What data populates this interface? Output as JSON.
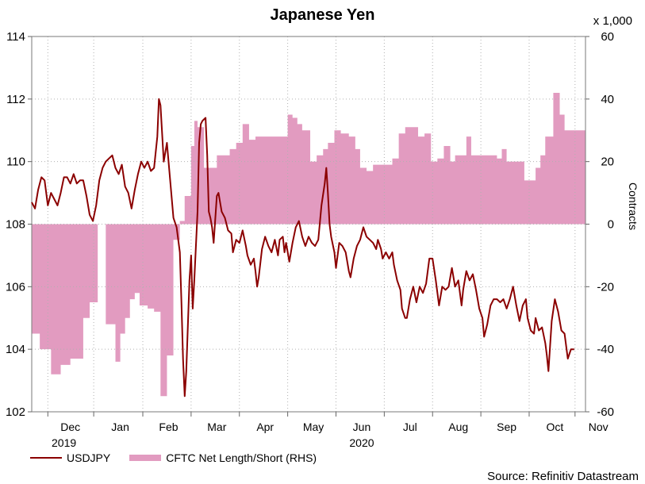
{
  "title": "Japanese Yen",
  "colors": {
    "usdjpy": "#8b0000",
    "cftc": "#e29bc0",
    "grid": "#b0b0b0"
  },
  "chart_data": {
    "type": "line+area",
    "title": "Japanese Yen",
    "scale_note": "x 1,000",
    "right_axis_label": "Contracts",
    "left_axis": {
      "ylim": [
        102,
        114
      ],
      "ticks": [
        "102",
        "104",
        "106",
        "108",
        "110",
        "112",
        "114"
      ]
    },
    "right_axis": {
      "ylim": [
        -60,
        60
      ],
      "ticks": [
        "-60",
        "-40",
        "-20",
        "0",
        "20",
        "40",
        "60"
      ]
    },
    "x_domain": [
      0,
      344
    ],
    "month_labels": [
      {
        "label": "Dec",
        "x": 24
      },
      {
        "label": "Jan",
        "x": 55
      },
      {
        "label": "Feb",
        "x": 85
      },
      {
        "label": "Mar",
        "x": 115
      },
      {
        "label": "Apr",
        "x": 145
      },
      {
        "label": "May",
        "x": 175
      },
      {
        "label": "Jun",
        "x": 205
      },
      {
        "label": "Jul",
        "x": 235
      },
      {
        "label": "Aug",
        "x": 265
      },
      {
        "label": "Sep",
        "x": 295
      },
      {
        "label": "Oct",
        "x": 325
      },
      {
        "label": "Nov",
        "x": 352
      }
    ],
    "year_labels": [
      {
        "label": "2019",
        "x": 20
      },
      {
        "label": "2020",
        "x": 205
      }
    ],
    "series": [
      {
        "name": "USDJPY",
        "type": "line",
        "axis": "left",
        "points": [
          [
            0,
            108.7
          ],
          [
            2,
            108.5
          ],
          [
            4,
            109.1
          ],
          [
            6,
            109.5
          ],
          [
            8,
            109.4
          ],
          [
            10,
            108.6
          ],
          [
            12,
            109.0
          ],
          [
            14,
            108.8
          ],
          [
            16,
            108.6
          ],
          [
            18,
            109.0
          ],
          [
            20,
            109.5
          ],
          [
            22,
            109.5
          ],
          [
            24,
            109.3
          ],
          [
            26,
            109.6
          ],
          [
            28,
            109.3
          ],
          [
            30,
            109.4
          ],
          [
            32,
            109.4
          ],
          [
            34,
            108.9
          ],
          [
            36,
            108.3
          ],
          [
            38,
            108.1
          ],
          [
            40,
            108.6
          ],
          [
            42,
            109.4
          ],
          [
            44,
            109.8
          ],
          [
            46,
            110.0
          ],
          [
            48,
            110.1
          ],
          [
            50,
            110.2
          ],
          [
            52,
            109.8
          ],
          [
            54,
            109.6
          ],
          [
            56,
            109.9
          ],
          [
            58,
            109.2
          ],
          [
            60,
            109.0
          ],
          [
            62,
            108.5
          ],
          [
            64,
            109.1
          ],
          [
            66,
            109.6
          ],
          [
            68,
            110.0
          ],
          [
            70,
            109.8
          ],
          [
            72,
            110.0
          ],
          [
            74,
            109.7
          ],
          [
            76,
            109.8
          ],
          [
            78,
            110.8
          ],
          [
            79,
            112.0
          ],
          [
            80,
            111.8
          ],
          [
            82,
            110.0
          ],
          [
            84,
            110.6
          ],
          [
            86,
            109.4
          ],
          [
            88,
            108.2
          ],
          [
            90,
            107.9
          ],
          [
            92,
            107.1
          ],
          [
            93,
            105.5
          ],
          [
            94,
            103.7
          ],
          [
            95,
            102.5
          ],
          [
            96,
            103.3
          ],
          [
            98,
            106.2
          ],
          [
            99,
            107.0
          ],
          [
            100,
            105.3
          ],
          [
            101,
            106.2
          ],
          [
            103,
            108.4
          ],
          [
            104,
            110.6
          ],
          [
            105,
            111.2
          ],
          [
            106,
            111.3
          ],
          [
            108,
            111.4
          ],
          [
            109,
            110.2
          ],
          [
            110,
            108.4
          ],
          [
            111,
            108.2
          ],
          [
            112,
            107.9
          ],
          [
            113,
            107.4
          ],
          [
            115,
            108.9
          ],
          [
            116,
            109.0
          ],
          [
            118,
            108.4
          ],
          [
            120,
            108.2
          ],
          [
            122,
            107.8
          ],
          [
            124,
            107.7
          ],
          [
            125,
            107.1
          ],
          [
            127,
            107.5
          ],
          [
            129,
            107.4
          ],
          [
            131,
            107.8
          ],
          [
            133,
            107.3
          ],
          [
            134,
            107.0
          ],
          [
            136,
            106.7
          ],
          [
            138,
            106.9
          ],
          [
            139,
            106.5
          ],
          [
            140,
            106.0
          ],
          [
            141,
            106.3
          ],
          [
            143,
            107.2
          ],
          [
            145,
            107.6
          ],
          [
            147,
            107.3
          ],
          [
            149,
            107.1
          ],
          [
            151,
            107.5
          ],
          [
            153,
            107.0
          ],
          [
            154,
            107.5
          ],
          [
            156,
            107.6
          ],
          [
            157,
            107.1
          ],
          [
            158,
            107.4
          ],
          [
            160,
            106.8
          ],
          [
            162,
            107.4
          ],
          [
            164,
            107.9
          ],
          [
            166,
            108.1
          ],
          [
            168,
            107.6
          ],
          [
            170,
            107.3
          ],
          [
            172,
            107.6
          ],
          [
            174,
            107.4
          ],
          [
            176,
            107.3
          ],
          [
            178,
            107.5
          ],
          [
            180,
            108.6
          ],
          [
            182,
            109.3
          ],
          [
            183,
            109.8
          ],
          [
            184,
            109.0
          ],
          [
            185,
            108.0
          ],
          [
            186,
            107.6
          ],
          [
            188,
            107.1
          ],
          [
            189,
            106.6
          ],
          [
            191,
            107.4
          ],
          [
            193,
            107.3
          ],
          [
            195,
            107.1
          ],
          [
            197,
            106.5
          ],
          [
            198,
            106.3
          ],
          [
            200,
            106.9
          ],
          [
            202,
            107.3
          ],
          [
            204,
            107.5
          ],
          [
            206,
            107.9
          ],
          [
            208,
            107.6
          ],
          [
            210,
            107.5
          ],
          [
            212,
            107.4
          ],
          [
            214,
            107.2
          ],
          [
            215,
            107.5
          ],
          [
            217,
            107.2
          ],
          [
            218,
            106.9
          ],
          [
            220,
            107.1
          ],
          [
            222,
            106.9
          ],
          [
            224,
            107.1
          ],
          [
            225,
            106.7
          ],
          [
            227,
            106.2
          ],
          [
            229,
            105.9
          ],
          [
            230,
            105.3
          ],
          [
            232,
            105.0
          ],
          [
            233,
            105.0
          ],
          [
            235,
            105.6
          ],
          [
            237,
            106.0
          ],
          [
            239,
            105.5
          ],
          [
            241,
            106.0
          ],
          [
            243,
            105.8
          ],
          [
            245,
            106.1
          ],
          [
            247,
            106.9
          ],
          [
            249,
            106.9
          ],
          [
            251,
            106.2
          ],
          [
            253,
            105.4
          ],
          [
            255,
            106.0
          ],
          [
            257,
            105.9
          ],
          [
            259,
            106.0
          ],
          [
            261,
            106.6
          ],
          [
            263,
            106.0
          ],
          [
            265,
            106.2
          ],
          [
            267,
            105.4
          ],
          [
            268,
            105.9
          ],
          [
            270,
            106.5
          ],
          [
            272,
            106.2
          ],
          [
            274,
            106.4
          ],
          [
            276,
            105.9
          ],
          [
            278,
            105.3
          ],
          [
            280,
            105.0
          ],
          [
            281,
            104.4
          ],
          [
            283,
            104.8
          ],
          [
            285,
            105.4
          ],
          [
            287,
            105.6
          ],
          [
            289,
            105.6
          ],
          [
            291,
            105.5
          ],
          [
            293,
            105.6
          ],
          [
            295,
            105.3
          ],
          [
            297,
            105.6
          ],
          [
            299,
            106.0
          ],
          [
            301,
            105.4
          ],
          [
            303,
            104.9
          ],
          [
            305,
            105.4
          ],
          [
            307,
            105.6
          ],
          [
            308,
            105.0
          ],
          [
            310,
            104.6
          ],
          [
            312,
            104.5
          ],
          [
            313,
            105.0
          ],
          [
            315,
            104.6
          ],
          [
            317,
            104.7
          ],
          [
            319,
            104.2
          ],
          [
            320,
            103.8
          ],
          [
            321,
            103.3
          ],
          [
            323,
            104.9
          ],
          [
            325,
            105.6
          ],
          [
            327,
            105.2
          ],
          [
            329,
            104.6
          ],
          [
            331,
            104.5
          ],
          [
            333,
            103.7
          ],
          [
            335,
            104.0
          ],
          [
            337,
            104.0
          ]
        ]
      },
      {
        "name": "CFTC Net Length/Short (RHS)",
        "type": "step-area",
        "axis": "right",
        "steps": [
          [
            0,
            -35
          ],
          [
            5,
            -40
          ],
          [
            12,
            -48
          ],
          [
            18,
            -45
          ],
          [
            24,
            -43
          ],
          [
            32,
            -30
          ],
          [
            36,
            -25
          ],
          [
            41,
            0
          ],
          [
            46,
            -32
          ],
          [
            52,
            -44
          ],
          [
            55,
            -35
          ],
          [
            58,
            -30
          ],
          [
            61,
            -24
          ],
          [
            64,
            -22
          ],
          [
            67,
            -26
          ],
          [
            72,
            -27
          ],
          [
            76,
            -28
          ],
          [
            80,
            -55
          ],
          [
            84,
            -42
          ],
          [
            88,
            -5
          ],
          [
            92,
            1
          ],
          [
            95,
            9
          ],
          [
            99,
            25
          ],
          [
            101,
            33
          ],
          [
            103,
            31
          ],
          [
            107,
            18
          ],
          [
            111,
            18
          ],
          [
            115,
            22
          ],
          [
            119,
            22
          ],
          [
            123,
            24
          ],
          [
            127,
            26
          ],
          [
            131,
            32
          ],
          [
            135,
            27
          ],
          [
            139,
            28
          ],
          [
            143,
            28
          ],
          [
            147,
            28
          ],
          [
            151,
            28
          ],
          [
            155,
            28
          ],
          [
            159,
            35
          ],
          [
            162,
            34
          ],
          [
            165,
            32
          ],
          [
            168,
            30
          ],
          [
            173,
            20
          ],
          [
            177,
            22
          ],
          [
            181,
            24
          ],
          [
            184,
            26
          ],
          [
            188,
            30
          ],
          [
            192,
            29
          ],
          [
            197,
            28
          ],
          [
            201,
            24
          ],
          [
            204,
            18
          ],
          [
            208,
            17
          ],
          [
            212,
            19
          ],
          [
            216,
            19
          ],
          [
            220,
            19
          ],
          [
            224,
            21
          ],
          [
            228,
            29
          ],
          [
            232,
            31
          ],
          [
            236,
            31
          ],
          [
            240,
            28
          ],
          [
            244,
            29
          ],
          [
            248,
            20
          ],
          [
            252,
            21
          ],
          [
            256,
            25
          ],
          [
            260,
            20
          ],
          [
            263,
            22
          ],
          [
            266,
            22
          ],
          [
            270,
            28
          ],
          [
            273,
            22
          ],
          [
            277,
            22
          ],
          [
            281,
            22
          ],
          [
            285,
            22
          ],
          [
            289,
            21
          ],
          [
            292,
            24
          ],
          [
            295,
            20
          ],
          [
            299,
            20
          ],
          [
            303,
            20
          ],
          [
            306,
            14
          ],
          [
            310,
            14
          ],
          [
            313,
            18
          ],
          [
            316,
            22
          ],
          [
            319,
            28
          ],
          [
            322,
            28
          ],
          [
            324,
            42
          ],
          [
            328,
            35
          ],
          [
            331,
            30
          ],
          [
            336,
            30
          ]
        ]
      }
    ]
  },
  "legend": {
    "line_label": "USDJPY",
    "area_label": "CFTC Net Length/Short (RHS)"
  },
  "source": "Source: Refinitiv Datastream"
}
